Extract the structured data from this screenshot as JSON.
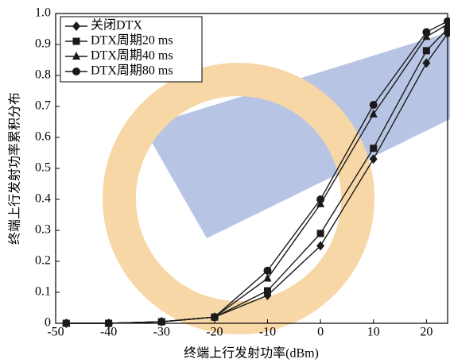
{
  "chart_data": {
    "type": "line",
    "x_label": "终端上行发射功率(dBm)",
    "y_label": "终端上行发射功率累积分布",
    "x": [
      -48,
      -40,
      -30,
      -20,
      -10,
      0,
      10,
      20,
      24
    ],
    "series": [
      {
        "name": "关闭DTX",
        "color": "#1a1a1a",
        "marker": "diamond",
        "values": [
          0,
          0,
          0.005,
          0.02,
          0.09,
          0.25,
          0.53,
          0.84,
          0.935
        ]
      },
      {
        "name": "DTX周期20 ms",
        "color": "#1a1a1a",
        "marker": "square",
        "values": [
          0,
          0,
          0.005,
          0.02,
          0.105,
          0.29,
          0.565,
          0.88,
          0.95
        ]
      },
      {
        "name": "DTX周期40 ms",
        "color": "#1a1a1a",
        "marker": "triangle",
        "values": [
          0,
          0,
          0.005,
          0.02,
          0.145,
          0.385,
          0.675,
          0.925,
          0.965
        ]
      },
      {
        "name": "DTX周期80 ms",
        "color": "#1a1a1a",
        "marker": "circle",
        "values": [
          0,
          0,
          0.005,
          0.02,
          0.17,
          0.4,
          0.705,
          0.94,
          0.975
        ]
      }
    ],
    "xlim": [
      -50,
      24
    ],
    "ylim": [
      0,
      1
    ],
    "xticks": [
      -50,
      -40,
      -30,
      -20,
      -10,
      0,
      10,
      20
    ],
    "yticks": [
      0,
      0.1,
      0.2,
      0.3,
      0.4,
      0.5,
      0.6,
      0.7,
      0.8,
      0.9,
      {
        "value": 1,
        "label": "1.0"
      }
    ],
    "legend": "upper left"
  }
}
